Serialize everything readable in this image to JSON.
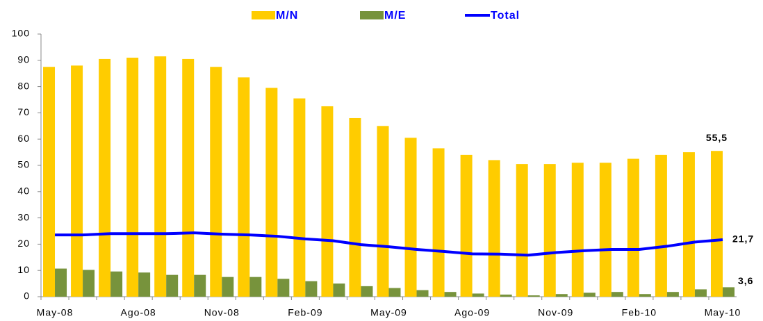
{
  "chart_data": {
    "type": "bar-line",
    "categories": [
      "May-08",
      null,
      null,
      "Ago-08",
      null,
      null,
      "Nov-08",
      null,
      null,
      "Feb-09",
      null,
      null,
      "May-09",
      null,
      null,
      "Ago-09",
      null,
      null,
      "Nov-09",
      null,
      null,
      "Feb-10",
      null,
      null,
      "May-10"
    ],
    "series": [
      {
        "name": "M/N",
        "type": "bar",
        "color": "#ffcc00",
        "values": [
          87.5,
          88,
          90.5,
          91,
          91.5,
          90.5,
          87.5,
          83.5,
          79.5,
          75.5,
          72.5,
          68,
          65,
          60.5,
          56.5,
          54,
          52,
          50.5,
          50.5,
          51,
          51,
          52.5,
          54,
          55,
          55.5
        ],
        "value_labels": [
          null,
          null,
          null,
          null,
          null,
          null,
          null,
          null,
          null,
          null,
          null,
          null,
          null,
          null,
          null,
          null,
          null,
          null,
          null,
          null,
          null,
          null,
          null,
          null,
          "55,5"
        ]
      },
      {
        "name": "M/E",
        "type": "bar",
        "color": "#77933c",
        "values": [
          10.7,
          10.2,
          9.6,
          9.2,
          8.3,
          8.3,
          7.5,
          7.5,
          6.8,
          5.9,
          5,
          4,
          3.3,
          2.5,
          1.8,
          1.2,
          0.8,
          0.5,
          1,
          1.5,
          1.8,
          1,
          1.8,
          2.8,
          3.6
        ],
        "value_labels": [
          null,
          null,
          null,
          null,
          null,
          null,
          null,
          null,
          null,
          null,
          null,
          null,
          null,
          null,
          null,
          null,
          null,
          null,
          null,
          null,
          null,
          null,
          null,
          null,
          "3,6"
        ]
      },
      {
        "name": "Total",
        "type": "line",
        "color": "#0000ff",
        "values": [
          23.5,
          23.5,
          24,
          24,
          24,
          24.3,
          23.8,
          23.5,
          23,
          22,
          21.3,
          19.8,
          19,
          18,
          17.2,
          16.3,
          16.2,
          15.8,
          16.8,
          17.5,
          18,
          18,
          19.2,
          20.8,
          21.7
        ],
        "value_labels": [
          null,
          null,
          null,
          null,
          null,
          null,
          null,
          null,
          null,
          null,
          null,
          null,
          null,
          null,
          null,
          null,
          null,
          null,
          null,
          null,
          null,
          null,
          null,
          null,
          "21,7"
        ]
      }
    ],
    "ylim": [
      0,
      100
    ],
    "yticks": [
      0,
      10,
      20,
      30,
      40,
      50,
      60,
      70,
      80,
      90,
      100
    ],
    "grid": false,
    "legend": "top"
  }
}
